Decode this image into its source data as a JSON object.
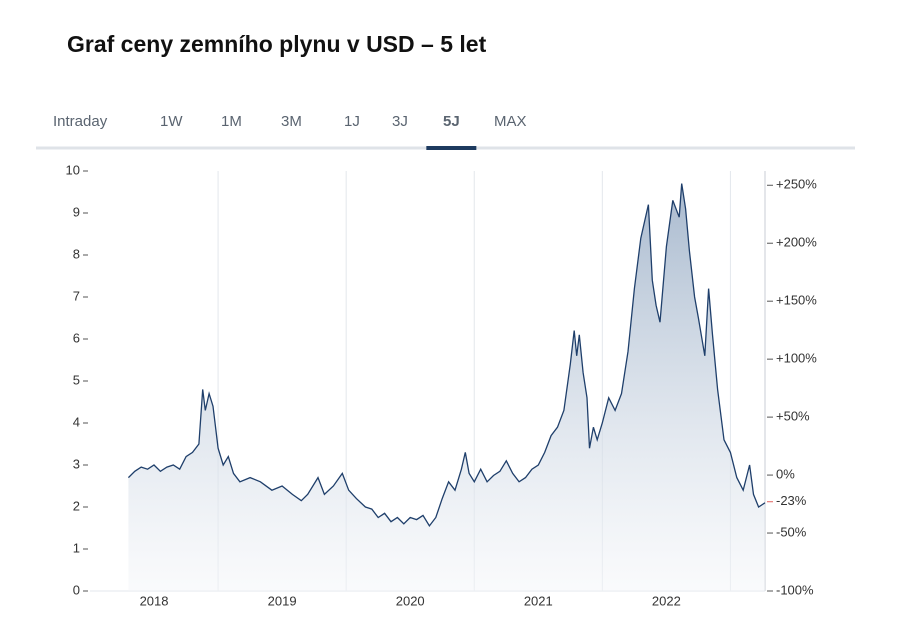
{
  "tabs": [
    "Intraday",
    "1W",
    "1M",
    "3M",
    "1J",
    "3J",
    "5J",
    "MAX"
  ],
  "active_tab": "5J",
  "chart_data": {
    "type": "area",
    "title": "Graf ceny zemního plynu v USD – 5 let",
    "color": "#1f3f6b",
    "x": [
      2018.3,
      2018.35,
      2018.4,
      2018.45,
      2018.5,
      2018.55,
      2018.6,
      2018.65,
      2018.7,
      2018.75,
      2018.8,
      2018.85,
      2018.88,
      2018.9,
      2018.93,
      2018.96,
      2019.0,
      2019.04,
      2019.08,
      2019.12,
      2019.17,
      2019.25,
      2019.33,
      2019.42,
      2019.5,
      2019.58,
      2019.65,
      2019.7,
      2019.78,
      2019.83,
      2019.9,
      2019.97,
      2020.02,
      2020.08,
      2020.15,
      2020.2,
      2020.25,
      2020.3,
      2020.35,
      2020.4,
      2020.45,
      2020.5,
      2020.55,
      2020.6,
      2020.65,
      2020.7,
      2020.75,
      2020.8,
      2020.85,
      2020.9,
      2020.93,
      2020.96,
      2021.0,
      2021.05,
      2021.1,
      2021.15,
      2021.2,
      2021.25,
      2021.3,
      2021.35,
      2021.4,
      2021.45,
      2021.5,
      2021.55,
      2021.6,
      2021.65,
      2021.7,
      2021.75,
      2021.78,
      2021.8,
      2021.82,
      2021.85,
      2021.88,
      2021.9,
      2021.93,
      2021.96,
      2022.0,
      2022.05,
      2022.1,
      2022.15,
      2022.2,
      2022.25,
      2022.3,
      2022.33,
      2022.36,
      2022.39,
      2022.42,
      2022.45,
      2022.5,
      2022.55,
      2022.6,
      2022.62,
      2022.65,
      2022.68,
      2022.72,
      2022.75,
      2022.8,
      2022.83,
      2022.86,
      2022.9,
      2022.95,
      2023.0,
      2023.05,
      2023.1,
      2023.15,
      2023.18,
      2023.22,
      2023.27
    ],
    "values": [
      2.7,
      2.85,
      2.95,
      2.9,
      3.0,
      2.85,
      2.95,
      3.0,
      2.9,
      3.2,
      3.3,
      3.5,
      4.8,
      4.3,
      4.7,
      4.4,
      3.4,
      3.0,
      3.2,
      2.8,
      2.6,
      2.7,
      2.6,
      2.4,
      2.5,
      2.3,
      2.15,
      2.3,
      2.7,
      2.3,
      2.5,
      2.8,
      2.4,
      2.2,
      2.0,
      1.95,
      1.75,
      1.85,
      1.65,
      1.75,
      1.6,
      1.75,
      1.7,
      1.8,
      1.55,
      1.75,
      2.2,
      2.6,
      2.4,
      2.9,
      3.3,
      2.8,
      2.6,
      2.9,
      2.6,
      2.75,
      2.85,
      3.1,
      2.8,
      2.6,
      2.7,
      2.9,
      3.0,
      3.3,
      3.7,
      3.9,
      4.3,
      5.4,
      6.2,
      5.6,
      6.1,
      5.2,
      4.6,
      3.4,
      3.9,
      3.6,
      4.0,
      4.6,
      4.3,
      4.7,
      5.7,
      7.2,
      8.4,
      8.8,
      9.2,
      7.4,
      6.8,
      6.4,
      8.2,
      9.3,
      8.9,
      9.7,
      9.1,
      8.1,
      7.0,
      6.5,
      5.6,
      7.2,
      6.1,
      4.8,
      3.6,
      3.3,
      2.7,
      2.4,
      3.0,
      2.3,
      2.0,
      2.1
    ],
    "xlim": [
      2018,
      2023.27
    ],
    "xticks": [
      2018,
      2019,
      2020,
      2021,
      2022
    ],
    "ylim": [
      0,
      10
    ],
    "yticks": [
      0,
      1,
      2,
      3,
      4,
      5,
      6,
      7,
      8,
      9,
      10
    ],
    "y2lim": [
      -100,
      262.3
    ],
    "y2ticks": [
      {
        "value": -100,
        "label": "-100%"
      },
      {
        "value": -50,
        "label": "-50%"
      },
      {
        "value": 0,
        "label": "0%"
      },
      {
        "value": 50,
        "label": "+50%"
      },
      {
        "value": 100,
        "label": "+100%"
      },
      {
        "value": 150,
        "label": "+150%"
      },
      {
        "value": 200,
        "label": "+200%"
      },
      {
        "value": 250,
        "label": "+250%"
      }
    ],
    "current_change": {
      "value": -23,
      "label": "-23%",
      "color": "#e0605e"
    },
    "grid": true
  }
}
